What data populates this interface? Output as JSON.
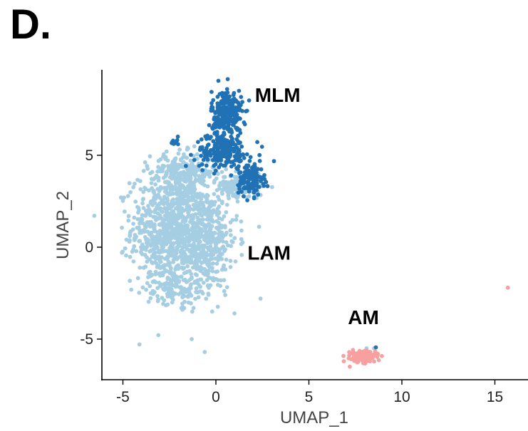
{
  "panel_label": "D.",
  "chart_data": {
    "type": "scatter",
    "xlabel": "UMAP_1",
    "ylabel": "UMAP_2",
    "xlim": [
      -6.2,
      16.5
    ],
    "ylim": [
      -7.2,
      9.5
    ],
    "x_ticks": [
      -5,
      0,
      5,
      10,
      15
    ],
    "y_ticks": [
      -5,
      0,
      5
    ],
    "grid": false,
    "legend": "none",
    "colors": {
      "MLM": "#2171b5",
      "LAM": "#a6cee3",
      "AM": "#f8a0a0"
    },
    "annotations": [
      {
        "text": "MLM",
        "x": 2.1,
        "y": 8.3
      },
      {
        "text": "LAM",
        "x": 1.7,
        "y": -0.3
      },
      {
        "text": "AM",
        "x": 7.1,
        "y": -3.8
      }
    ],
    "series": [
      {
        "name": "MLM",
        "clusters": [
          {
            "cx": 0.6,
            "cy": 7.2,
            "sx": 0.55,
            "sy": 0.9,
            "n": 260
          },
          {
            "cx": 0.4,
            "cy": 5.2,
            "sx": 1.0,
            "sy": 0.6,
            "n": 200
          },
          {
            "cx": 1.9,
            "cy": 3.7,
            "sx": 0.45,
            "sy": 0.6,
            "n": 120
          },
          {
            "cx": -2.2,
            "cy": 5.7,
            "sx": 0.3,
            "sy": 0.15,
            "n": 8
          }
        ],
        "points": [
          [
            0.6,
            8.6
          ],
          [
            -2.3,
            5.8
          ],
          [
            8.6,
            -5.45
          ]
        ]
      },
      {
        "name": "LAM",
        "clusters": [
          {
            "cx": -2.6,
            "cy": 1.0,
            "sx": 1.3,
            "sy": 2.0,
            "n": 700
          },
          {
            "cx": -0.8,
            "cy": 0.5,
            "sx": 1.3,
            "sy": 1.9,
            "n": 550
          },
          {
            "cx": -1.7,
            "cy": 4.1,
            "sx": 1.2,
            "sy": 0.7,
            "n": 250
          },
          {
            "cx": 1.3,
            "cy": 3.3,
            "sx": 0.8,
            "sy": 0.5,
            "n": 140
          },
          {
            "cx": -2.3,
            "cy": -2.2,
            "sx": 1.0,
            "sy": 0.6,
            "n": 120
          }
        ],
        "points": [
          [
            -1.3,
            -5.0
          ],
          [
            -0.6,
            -5.7
          ],
          [
            1.0,
            -3.6
          ],
          [
            0.5,
            -2.6
          ],
          [
            2.4,
            -2.8
          ],
          [
            -1.8,
            -3.4
          ],
          [
            -0.2,
            -3.5
          ],
          [
            8.1,
            -5.5
          ],
          [
            8.5,
            -5.5
          ]
        ]
      },
      {
        "name": "AM",
        "clusters": [
          {
            "cx": 7.9,
            "cy": -5.95,
            "sx": 0.45,
            "sy": 0.2,
            "n": 200
          }
        ],
        "points": [
          [
            15.7,
            -2.2
          ],
          [
            7.2,
            -6.5
          ],
          [
            8.7,
            -5.8
          ]
        ]
      }
    ]
  }
}
